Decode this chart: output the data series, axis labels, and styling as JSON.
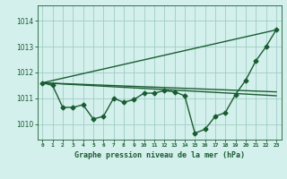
{
  "background_color": "#d4f0ec",
  "grid_color": "#a0ccc4",
  "line_color": "#1a5c32",
  "xlabel": "Graphe pression niveau de la mer (hPa)",
  "ylim": [
    1009.4,
    1014.6
  ],
  "xlim": [
    -0.5,
    23.5
  ],
  "yticks": [
    1010,
    1011,
    1012,
    1013,
    1014
  ],
  "xtick_labels": [
    "0",
    "1",
    "2",
    "3",
    "4",
    "5",
    "6",
    "7",
    "8",
    "9",
    "10",
    "11",
    "12",
    "13",
    "14",
    "15",
    "16",
    "17",
    "18",
    "19",
    "20",
    "21",
    "22",
    "23"
  ],
  "series": [
    {
      "x": [
        0,
        1,
        2,
        3,
        4,
        5,
        6,
        7,
        8,
        9,
        10,
        11,
        12,
        13,
        14,
        15,
        16,
        17,
        18,
        19,
        20,
        21,
        22,
        23
      ],
      "y": [
        1011.6,
        1011.5,
        1010.65,
        1010.65,
        1010.75,
        1010.2,
        1010.3,
        1011.0,
        1010.85,
        1010.95,
        1011.2,
        1011.2,
        1011.3,
        1011.25,
        1011.1,
        1009.65,
        1009.8,
        1010.3,
        1010.45,
        1011.15,
        1011.7,
        1012.45,
        1013.0,
        1013.65
      ],
      "marker": "D",
      "markersize": 2.5,
      "linewidth": 1.0,
      "zorder": 4
    },
    {
      "x": [
        0,
        23
      ],
      "y": [
        1011.6,
        1013.65
      ],
      "marker": null,
      "linewidth": 1.0,
      "zorder": 3
    },
    {
      "x": [
        0,
        23
      ],
      "y": [
        1011.6,
        1011.25
      ],
      "marker": null,
      "linewidth": 1.0,
      "zorder": 3
    },
    {
      "x": [
        0,
        23
      ],
      "y": [
        1011.6,
        1011.1
      ],
      "marker": null,
      "linewidth": 1.0,
      "zorder": 3
    }
  ]
}
